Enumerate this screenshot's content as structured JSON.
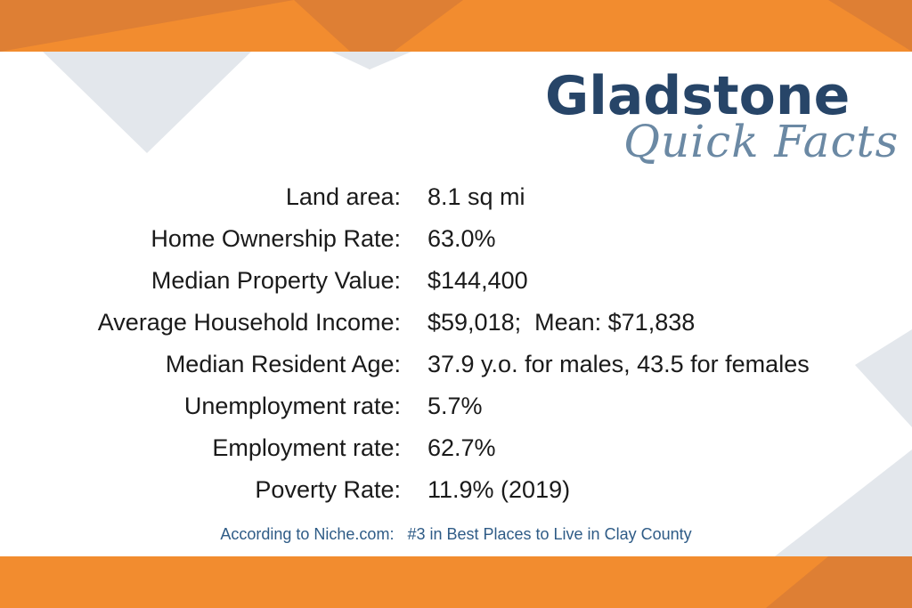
{
  "header": {
    "title": "Gladstone",
    "subtitle": "Quick Facts"
  },
  "facts": [
    {
      "label": "Land area:",
      "value": "8.1 sq mi"
    },
    {
      "label": "Home Ownership Rate:",
      "value": "63.0%"
    },
    {
      "label": "Median Property Value:",
      "value": "$144,400"
    },
    {
      "label": "Average Household Income:",
      "value": "$59,018;  Mean: $71,838"
    },
    {
      "label": "Median Resident Age:",
      "value": "37.9 y.o. for males, 43.5 for females"
    },
    {
      "label": "Unemployment rate:",
      "value": "5.7%"
    },
    {
      "label": "Employment rate:",
      "value": "62.7%"
    },
    {
      "label": "Poverty Rate:",
      "value": "11.9% (2019)"
    }
  ],
  "footer": {
    "text": "According to Niche.com:   #3 in Best Places to Live in Clay County"
  },
  "colors": {
    "orange": "#f28c2f",
    "dark_orange": "#de7f34",
    "gray": "#e3e7ec",
    "title": "#274568",
    "subtitle": "#6b89a4",
    "footer": "#2e5b86"
  }
}
